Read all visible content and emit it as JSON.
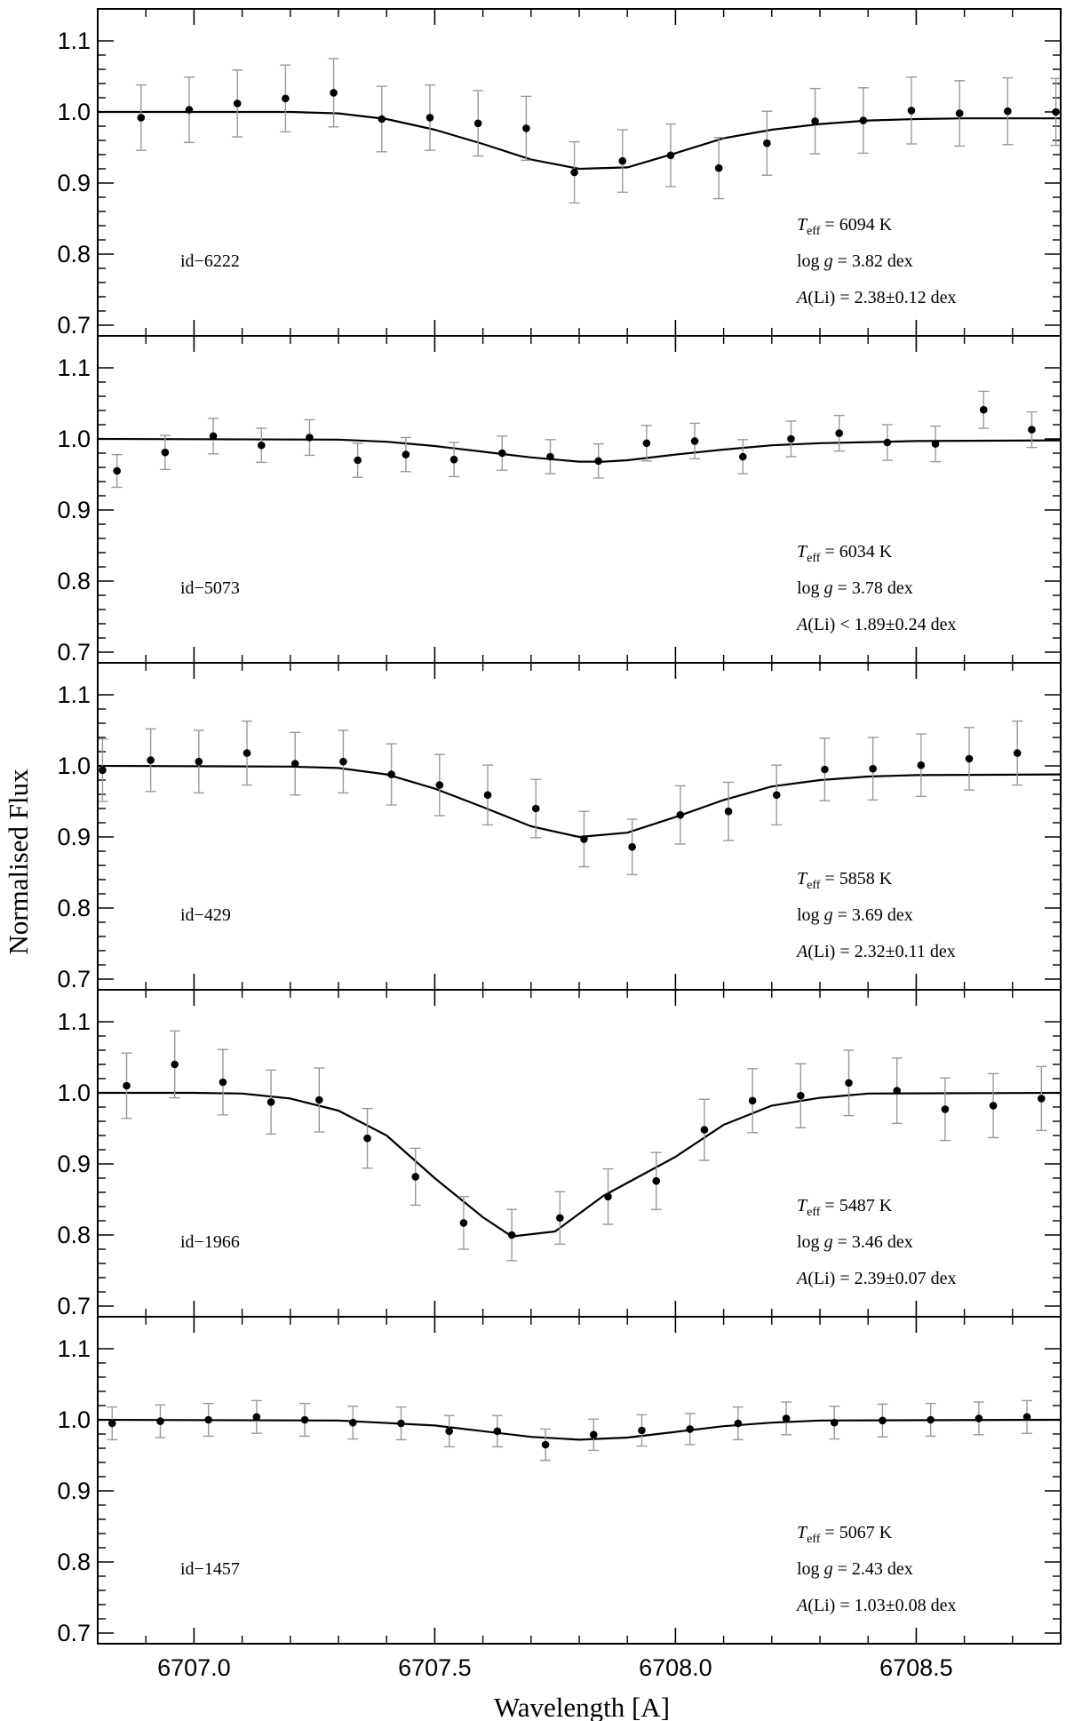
{
  "chart_data": {
    "type": "scatter",
    "xlabel": "Wavelength [A]",
    "ylabel": "Normalised Flux",
    "xlim": [
      6706.8,
      6708.8
    ],
    "ylim": [
      0.685,
      1.145
    ],
    "x_ticks": [
      6707.0,
      6707.5,
      6708.0,
      6708.5
    ],
    "x_tick_labels": [
      "6707.0",
      "6707.5",
      "6708.0",
      "6708.5"
    ],
    "y_ticks": [
      0.7,
      0.8,
      0.9,
      1.0,
      1.1
    ],
    "y_tick_labels": [
      "0.7",
      "0.8",
      "0.9",
      "1.0",
      "1.1"
    ],
    "panels": [
      {
        "star_id": "id−6222",
        "teff_value": "6094",
        "logg_value": "3.82",
        "ali_relation": "=",
        "ali_value": "2.38±0.12",
        "points": [
          [
            6706.89,
            0.992,
            0.046
          ],
          [
            6706.99,
            1.003,
            0.046
          ],
          [
            6707.09,
            1.012,
            0.047
          ],
          [
            6707.19,
            1.019,
            0.047
          ],
          [
            6707.29,
            1.027,
            0.048
          ],
          [
            6707.39,
            0.99,
            0.046
          ],
          [
            6707.49,
            0.992,
            0.046
          ],
          [
            6707.59,
            0.984,
            0.046
          ],
          [
            6707.69,
            0.977,
            0.045
          ],
          [
            6707.79,
            0.915,
            0.043
          ],
          [
            6707.89,
            0.931,
            0.044
          ],
          [
            6707.99,
            0.939,
            0.044
          ],
          [
            6708.09,
            0.921,
            0.043
          ],
          [
            6708.19,
            0.956,
            0.045
          ],
          [
            6708.29,
            0.987,
            0.046
          ],
          [
            6708.39,
            0.988,
            0.046
          ],
          [
            6708.49,
            1.002,
            0.047
          ],
          [
            6708.59,
            0.998,
            0.046
          ],
          [
            6708.69,
            1.001,
            0.047
          ],
          [
            6708.79,
            1.0,
            0.047
          ]
        ],
        "model": [
          [
            6706.8,
            1.0
          ],
          [
            6707.0,
            1.0
          ],
          [
            6707.2,
            1.0
          ],
          [
            6707.3,
            0.998
          ],
          [
            6707.4,
            0.99
          ],
          [
            6707.5,
            0.975
          ],
          [
            6707.6,
            0.955
          ],
          [
            6707.7,
            0.933
          ],
          [
            6707.8,
            0.92
          ],
          [
            6707.9,
            0.922
          ],
          [
            6708.0,
            0.942
          ],
          [
            6708.1,
            0.963
          ],
          [
            6708.2,
            0.975
          ],
          [
            6708.3,
            0.983
          ],
          [
            6708.4,
            0.988
          ],
          [
            6708.5,
            0.99
          ],
          [
            6708.6,
            0.991
          ],
          [
            6708.8,
            0.991
          ]
        ]
      },
      {
        "star_id": "id−5073",
        "teff_value": "6034",
        "logg_value": "3.78",
        "ali_relation": "<",
        "ali_value": "1.89±0.24",
        "points": [
          [
            6706.84,
            0.955,
            0.023
          ],
          [
            6706.94,
            0.981,
            0.024
          ],
          [
            6707.04,
            1.004,
            0.025
          ],
          [
            6707.14,
            0.991,
            0.024
          ],
          [
            6707.24,
            1.002,
            0.025
          ],
          [
            6707.34,
            0.97,
            0.024
          ],
          [
            6707.44,
            0.978,
            0.024
          ],
          [
            6707.54,
            0.971,
            0.024
          ],
          [
            6707.64,
            0.98,
            0.024
          ],
          [
            6707.74,
            0.975,
            0.024
          ],
          [
            6707.84,
            0.969,
            0.024
          ],
          [
            6707.94,
            0.994,
            0.025
          ],
          [
            6708.04,
            0.997,
            0.025
          ],
          [
            6708.14,
            0.975,
            0.024
          ],
          [
            6708.24,
            1.0,
            0.025
          ],
          [
            6708.34,
            1.008,
            0.025
          ],
          [
            6708.44,
            0.995,
            0.025
          ],
          [
            6708.54,
            0.993,
            0.025
          ],
          [
            6708.64,
            1.041,
            0.026
          ],
          [
            6708.74,
            1.013,
            0.025
          ]
        ],
        "model": [
          [
            6706.8,
            1.0
          ],
          [
            6707.3,
            0.999
          ],
          [
            6707.4,
            0.996
          ],
          [
            6707.5,
            0.99
          ],
          [
            6707.6,
            0.982
          ],
          [
            6707.7,
            0.974
          ],
          [
            6707.8,
            0.968
          ],
          [
            6707.85,
            0.968
          ],
          [
            6707.9,
            0.97
          ],
          [
            6708.0,
            0.978
          ],
          [
            6708.1,
            0.985
          ],
          [
            6708.2,
            0.991
          ],
          [
            6708.3,
            0.994
          ],
          [
            6708.5,
            0.997
          ],
          [
            6708.8,
            0.998
          ]
        ]
      },
      {
        "star_id": "id−429",
        "teff_value": "5858",
        "logg_value": "3.69",
        "ali_relation": "=",
        "ali_value": "2.32±0.11",
        "points": [
          [
            6706.81,
            0.994,
            0.044
          ],
          [
            6706.91,
            1.008,
            0.044
          ],
          [
            6707.01,
            1.006,
            0.044
          ],
          [
            6707.11,
            1.018,
            0.045
          ],
          [
            6707.21,
            1.003,
            0.044
          ],
          [
            6707.31,
            1.006,
            0.044
          ],
          [
            6707.41,
            0.988,
            0.043
          ],
          [
            6707.51,
            0.973,
            0.043
          ],
          [
            6707.61,
            0.959,
            0.042
          ],
          [
            6707.71,
            0.94,
            0.041
          ],
          [
            6707.81,
            0.897,
            0.039
          ],
          [
            6707.91,
            0.886,
            0.039
          ],
          [
            6708.01,
            0.931,
            0.041
          ],
          [
            6708.11,
            0.936,
            0.041
          ],
          [
            6708.21,
            0.959,
            0.042
          ],
          [
            6708.31,
            0.995,
            0.044
          ],
          [
            6708.41,
            0.996,
            0.044
          ],
          [
            6708.51,
            1.001,
            0.044
          ],
          [
            6708.61,
            1.01,
            0.044
          ],
          [
            6708.71,
            1.018,
            0.045
          ]
        ],
        "model": [
          [
            6706.8,
            1.0
          ],
          [
            6707.2,
            0.999
          ],
          [
            6707.3,
            0.997
          ],
          [
            6707.4,
            0.988
          ],
          [
            6707.5,
            0.968
          ],
          [
            6707.6,
            0.942
          ],
          [
            6707.7,
            0.915
          ],
          [
            6707.8,
            0.9
          ],
          [
            6707.9,
            0.906
          ],
          [
            6708.0,
            0.928
          ],
          [
            6708.1,
            0.952
          ],
          [
            6708.2,
            0.971
          ],
          [
            6708.3,
            0.98
          ],
          [
            6708.4,
            0.985
          ],
          [
            6708.5,
            0.987
          ],
          [
            6708.8,
            0.988
          ]
        ]
      },
      {
        "star_id": "id−1966",
        "teff_value": "5487",
        "logg_value": "3.46",
        "ali_relation": "=",
        "ali_value": "2.39±0.07",
        "points": [
          [
            6706.86,
            1.01,
            0.046
          ],
          [
            6706.96,
            1.04,
            0.047
          ],
          [
            6707.06,
            1.015,
            0.046
          ],
          [
            6707.16,
            0.987,
            0.045
          ],
          [
            6707.26,
            0.99,
            0.045
          ],
          [
            6707.36,
            0.936,
            0.042
          ],
          [
            6707.46,
            0.882,
            0.04
          ],
          [
            6707.56,
            0.817,
            0.037
          ],
          [
            6707.66,
            0.8,
            0.036
          ],
          [
            6707.76,
            0.824,
            0.037
          ],
          [
            6707.86,
            0.854,
            0.039
          ],
          [
            6707.96,
            0.876,
            0.04
          ],
          [
            6708.06,
            0.948,
            0.043
          ],
          [
            6708.16,
            0.989,
            0.045
          ],
          [
            6708.26,
            0.996,
            0.045
          ],
          [
            6708.36,
            1.014,
            0.046
          ],
          [
            6708.46,
            1.003,
            0.046
          ],
          [
            6708.56,
            0.977,
            0.044
          ],
          [
            6708.66,
            0.982,
            0.045
          ],
          [
            6708.76,
            0.992,
            0.045
          ]
        ],
        "model": [
          [
            6706.8,
            1.0
          ],
          [
            6707.0,
            1.0
          ],
          [
            6707.1,
            0.999
          ],
          [
            6707.2,
            0.992
          ],
          [
            6707.3,
            0.975
          ],
          [
            6707.4,
            0.94
          ],
          [
            6707.5,
            0.88
          ],
          [
            6707.6,
            0.825
          ],
          [
            6707.66,
            0.798
          ],
          [
            6707.75,
            0.805
          ],
          [
            6707.85,
            0.855
          ],
          [
            6708.0,
            0.91
          ],
          [
            6708.1,
            0.955
          ],
          [
            6708.2,
            0.982
          ],
          [
            6708.3,
            0.993
          ],
          [
            6708.4,
            0.999
          ],
          [
            6708.8,
            1.0
          ]
        ]
      },
      {
        "star_id": "id−1457",
        "teff_value": "5067",
        "logg_value": "2.43",
        "ali_relation": "=",
        "ali_value": "1.03±0.08",
        "points": [
          [
            6706.83,
            0.995,
            0.023
          ],
          [
            6706.93,
            0.998,
            0.023
          ],
          [
            6707.03,
            1.0,
            0.023
          ],
          [
            6707.13,
            1.004,
            0.023
          ],
          [
            6707.23,
            1.0,
            0.023
          ],
          [
            6707.33,
            0.996,
            0.023
          ],
          [
            6707.43,
            0.995,
            0.023
          ],
          [
            6707.53,
            0.984,
            0.022
          ],
          [
            6707.63,
            0.984,
            0.022
          ],
          [
            6707.73,
            0.965,
            0.022
          ],
          [
            6707.83,
            0.979,
            0.022
          ],
          [
            6707.93,
            0.985,
            0.022
          ],
          [
            6708.03,
            0.987,
            0.022
          ],
          [
            6708.13,
            0.995,
            0.023
          ],
          [
            6708.23,
            1.002,
            0.023
          ],
          [
            6708.33,
            0.996,
            0.023
          ],
          [
            6708.43,
            0.999,
            0.023
          ],
          [
            6708.53,
            1.0,
            0.023
          ],
          [
            6708.63,
            1.002,
            0.023
          ],
          [
            6708.73,
            1.004,
            0.023
          ]
        ],
        "model": [
          [
            6706.8,
            1.0
          ],
          [
            6707.3,
            0.999
          ],
          [
            6707.5,
            0.992
          ],
          [
            6707.6,
            0.984
          ],
          [
            6707.7,
            0.976
          ],
          [
            6707.8,
            0.972
          ],
          [
            6707.9,
            0.975
          ],
          [
            6708.0,
            0.983
          ],
          [
            6708.1,
            0.991
          ],
          [
            6708.2,
            0.996
          ],
          [
            6708.3,
            0.999
          ],
          [
            6708.8,
            1.0
          ]
        ]
      }
    ]
  }
}
